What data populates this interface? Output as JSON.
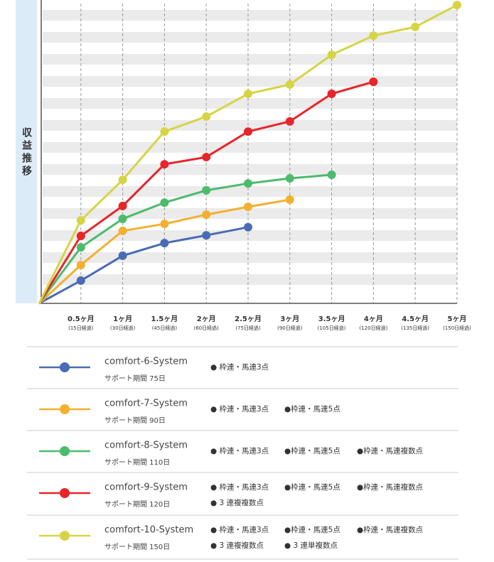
{
  "chart_data": {
    "type": "line",
    "y_axis_label": "収益推移",
    "x": [
      0,
      0.5,
      1,
      1.5,
      2,
      2.5,
      3,
      3.5,
      4,
      4.5,
      5
    ],
    "xlim": [
      0,
      5
    ],
    "ylim": [
      0,
      100
    ],
    "grid": "bands",
    "xticks": [
      {
        "value": 0.5,
        "label": "0.5ヶ月",
        "sublabel": "(15日経過)"
      },
      {
        "value": 1,
        "label": "1ヶ月",
        "sublabel": "(30日経過)"
      },
      {
        "value": 1.5,
        "label": "1.5ヶ月",
        "sublabel": "(45日経過)"
      },
      {
        "value": 2,
        "label": "2ヶ月",
        "sublabel": "(60日経過)"
      },
      {
        "value": 2.5,
        "label": "2.5ヶ月",
        "sublabel": "(75日経過)"
      },
      {
        "value": 3,
        "label": "3ヶ月",
        "sublabel": "(90日経過)"
      },
      {
        "value": 3.5,
        "label": "3.5ヶ月",
        "sublabel": "(105日経過)"
      },
      {
        "value": 4,
        "label": "4ヶ月",
        "sublabel": "(120日経過)"
      },
      {
        "value": 4.5,
        "label": "4.5ヶ月",
        "sublabel": "(135日経過)"
      },
      {
        "value": 5,
        "label": "5ヶ月",
        "sublabel": "(150日経過)"
      }
    ],
    "series": [
      {
        "name": "comfort-6-System",
        "color": "#4a6bb5",
        "support": "サポート期間 75日",
        "features": [
          "● 枠連・馬連3点"
        ],
        "values": [
          0,
          7.6,
          15.9,
          20.1,
          22.7,
          25.4,
          null,
          null,
          null,
          null,
          null
        ]
      },
      {
        "name": "comfort-7-System",
        "color": "#f3b030",
        "support": "サポート期間 90日",
        "features": [
          "● 枠連・馬連3点",
          "●枠連・馬連5点"
        ],
        "values": [
          0,
          12.8,
          24.2,
          26.5,
          29.6,
          32.2,
          34.6,
          null,
          null,
          null,
          null
        ]
      },
      {
        "name": "comfort-8-System",
        "color": "#4cbb6c",
        "support": "サポート期間 110日",
        "features": [
          "● 枠連・馬連3点",
          "●枠連・馬連5点",
          "●枠連・馬連複数点"
        ],
        "values": [
          0,
          18.7,
          28.2,
          33.6,
          37.7,
          40.0,
          41.7,
          42.9,
          null,
          null,
          null
        ]
      },
      {
        "name": "comfort-9-System",
        "color": "#e8252a",
        "support": "サポート期間 120日",
        "features": [
          "● 枠連・馬連3点",
          "●枠連・馬連5点",
          "●枠連・馬連複数点",
          "● 3 連複複数点"
        ],
        "values": [
          0,
          22.5,
          32.5,
          46.4,
          48.8,
          57.3,
          60.7,
          69.9,
          73.9,
          null,
          null
        ]
      },
      {
        "name": "comfort-10-System",
        "color": "#d6d445",
        "support": "サポート期間 150日",
        "features": [
          "● 枠連・馬連3点",
          "●枠連・馬連5点",
          "●枠連・馬連複数点",
          "● 3 連複複数点",
          "● 3 連単複数点"
        ],
        "values": [
          0,
          27.7,
          41.2,
          57.3,
          62.3,
          69.9,
          73.0,
          82.9,
          89.3,
          92.2,
          99.5
        ]
      }
    ]
  }
}
